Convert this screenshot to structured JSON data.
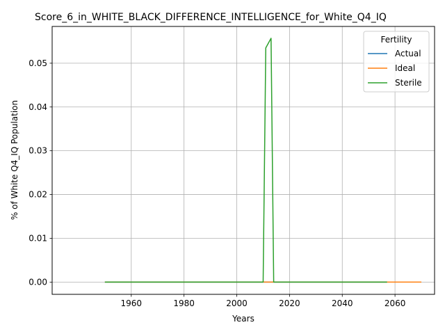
{
  "chart_data": {
    "type": "line",
    "title": "Score_6_in_WHITE_BLACK_DIFFERENCE_INTELLIGENCE_for_White_Q4_IQ",
    "xlabel": "Years",
    "ylabel": "% of White Q4_IQ Population",
    "xlim": [
      1930,
      2075
    ],
    "ylim": [
      -0.0028,
      0.0584
    ],
    "xticks": [
      1960,
      1980,
      2000,
      2020,
      2040,
      2060
    ],
    "yticks": [
      0.0,
      0.01,
      0.02,
      0.03,
      0.04,
      0.05
    ],
    "ytick_labels": [
      "0.00",
      "0.01",
      "0.02",
      "0.03",
      "0.04",
      "0.05"
    ],
    "grid": true,
    "legend": {
      "title": "Fertility",
      "position": "top-right"
    },
    "series": [
      {
        "name": "Actual",
        "color": "#1f77b4",
        "points": [
          [
            1950,
            0
          ],
          [
            2057,
            0
          ]
        ]
      },
      {
        "name": "Ideal",
        "color": "#ff7f0e",
        "points": [
          [
            1950,
            0
          ],
          [
            2070,
            0
          ]
        ]
      },
      {
        "name": "Sterile",
        "color": "#2ca02c",
        "points": [
          [
            1950,
            0
          ],
          [
            2010,
            0
          ],
          [
            2011,
            0.0535
          ],
          [
            2013,
            0.0557
          ],
          [
            2014,
            0
          ],
          [
            2057,
            0
          ]
        ]
      }
    ]
  }
}
